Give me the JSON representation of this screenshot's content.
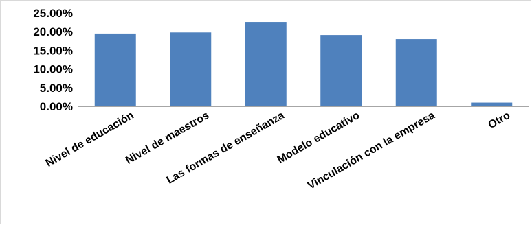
{
  "chart_data": {
    "type": "bar",
    "title": "",
    "xlabel": "",
    "ylabel": "",
    "categories": [
      "Nivel de educación",
      "Nivel de maestros",
      "Las formas de enseñanza",
      "Modelo educativo",
      "Vinculación con la empresa",
      "Otro"
    ],
    "values": [
      19.5,
      19.8,
      22.6,
      19.1,
      18.0,
      1.0
    ],
    "value_unit": "%",
    "y_ticks": [
      "0.00%",
      "5.00%",
      "10.00%",
      "15.00%",
      "20.00%",
      "25.00%"
    ],
    "ylim": [
      0,
      25
    ],
    "grid": false,
    "legend": "none",
    "bar_color": "#4f81bd",
    "axis_color": "#a6a6a6"
  }
}
